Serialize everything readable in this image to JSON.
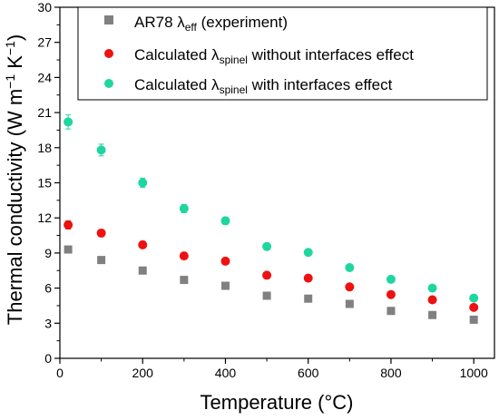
{
  "chart_data": {
    "type": "scatter",
    "title": "",
    "xlabel": "Temperature (°C)",
    "ylabel": {
      "main": "Thermal conductivity (W m",
      "sup1": "−1",
      "mid": " K",
      "sup2": "−1",
      "end": ")"
    },
    "xlim": [
      0,
      1050
    ],
    "ylim": [
      0,
      30
    ],
    "xticks": [
      0,
      200,
      400,
      600,
      800,
      1000
    ],
    "yticks": [
      0,
      3,
      6,
      9,
      12,
      15,
      18,
      21,
      24,
      27,
      30
    ],
    "grid": false,
    "legend_position": "top-right",
    "series": [
      {
        "name": {
          "base": "AR78 λ",
          "sub": "eff",
          "rest": " (experiment)"
        },
        "marker": "square",
        "color": "#808080",
        "x": [
          20,
          100,
          200,
          300,
          400,
          500,
          600,
          700,
          800,
          900,
          1000
        ],
        "y": [
          9.3,
          8.4,
          7.5,
          6.7,
          6.2,
          5.35,
          5.1,
          4.65,
          4.05,
          3.7,
          3.3
        ],
        "err": [
          0,
          0,
          0,
          0,
          0,
          0,
          0,
          0,
          0,
          0,
          0
        ]
      },
      {
        "name": {
          "base": "Calculated λ",
          "sub": "spinel",
          "rest": " without interfaces effect"
        },
        "marker": "circle",
        "color": "#ee1111",
        "x": [
          20,
          100,
          200,
          300,
          400,
          500,
          600,
          700,
          800,
          900,
          1000
        ],
        "y": [
          11.4,
          10.7,
          9.7,
          8.75,
          8.3,
          7.1,
          6.85,
          6.1,
          5.45,
          5.0,
          4.35
        ],
        "err": [
          0.35,
          0.3,
          0.3,
          0.25,
          0.25,
          0.2,
          0.2,
          0.2,
          0.2,
          0.15,
          0.15
        ]
      },
      {
        "name": {
          "base": "Calculated λ",
          "sub": "spinel",
          "rest": " with interfaces effect"
        },
        "marker": "circle",
        "color": "#1ed6a0",
        "x": [
          20,
          100,
          200,
          300,
          400,
          500,
          600,
          700,
          800,
          900,
          1000
        ],
        "y": [
          20.2,
          17.8,
          15.0,
          12.8,
          11.75,
          9.55,
          9.05,
          7.75,
          6.75,
          6.0,
          5.15
        ],
        "err": [
          0.6,
          0.5,
          0.4,
          0.35,
          0.3,
          0.25,
          0.25,
          0.2,
          0.2,
          0.2,
          0.15
        ]
      }
    ]
  }
}
